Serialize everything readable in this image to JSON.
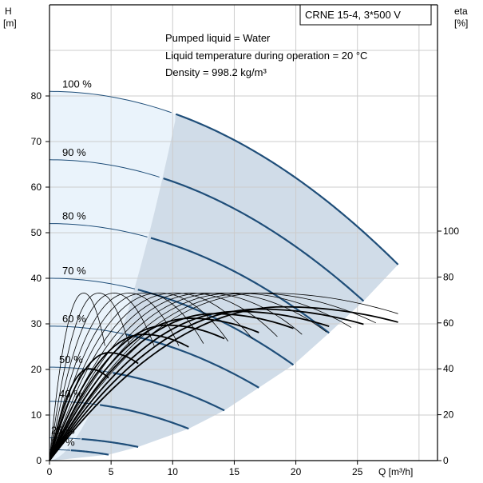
{
  "chart_data": {
    "type": "line",
    "title": "CRNE 15-4, 3*500 V",
    "info_lines": [
      "Pumped liquid = Water",
      "Liquid temperature during operation = 20 °C",
      "Density = 998.2 kg/m³"
    ],
    "x_axis": {
      "label": "Q [m³/h]",
      "ticks": [
        0,
        5,
        10,
        15,
        20,
        25
      ],
      "range": [
        0,
        31.5
      ]
    },
    "y_left": {
      "label_line1": "H",
      "label_line2": "[m]",
      "ticks": [
        0,
        10,
        20,
        30,
        40,
        50,
        60,
        70,
        80
      ],
      "range": [
        0,
        100
      ]
    },
    "y_right": {
      "label_line1": "eta",
      "label_line2": "[%]",
      "ticks": [
        0,
        20,
        40,
        60,
        80,
        100
      ],
      "range": [
        0,
        100
      ]
    },
    "grid": true,
    "colors": {
      "head_curve": "#1f4e79",
      "efficiency_curve": "#000000",
      "operating_area": "#d0dce8",
      "low_flow_area": "#eaf3fb",
      "grid": "#cccccc"
    },
    "head_curves": [
      {
        "speed_label": "100 %",
        "shut_off_head": 81,
        "q_max": 28.3,
        "h_end": 43
      },
      {
        "speed_label": "90 %",
        "shut_off_head": 66,
        "q_max": 25.5,
        "h_end": 35
      },
      {
        "speed_label": "80 %",
        "shut_off_head": 52,
        "q_max": 22.7,
        "h_end": 28
      },
      {
        "speed_label": "70 %",
        "shut_off_head": 40,
        "q_max": 19.8,
        "h_end": 21
      },
      {
        "speed_label": "60 %",
        "shut_off_head": 29.5,
        "q_max": 17.0,
        "h_end": 16
      },
      {
        "speed_label": "50 %",
        "shut_off_head": 20.5,
        "q_max": 14.2,
        "h_end": 11
      },
      {
        "speed_label": "40 %",
        "shut_off_head": 13,
        "q_max": 11.3,
        "h_end": 7
      },
      {
        "speed_label": "25 %",
        "shut_off_head": 5,
        "q_max": 7.2,
        "h_end": 3
      },
      {
        "speed_label": "17 %",
        "shut_off_head": 2.4,
        "q_max": 4.8,
        "h_end": 1.3
      }
    ],
    "efficiency_curves": [
      {
        "q_max": 28.3,
        "eta_peak": 67,
        "q_peak": 19
      },
      {
        "q_max": 25.5,
        "eta_peak": 66,
        "q_peak": 17
      },
      {
        "q_max": 22.7,
        "eta_peak": 65,
        "q_peak": 15.2
      },
      {
        "q_max": 19.8,
        "eta_peak": 64,
        "q_peak": 13.3
      },
      {
        "q_max": 17.0,
        "eta_peak": 62,
        "q_peak": 11.4
      },
      {
        "q_max": 14.2,
        "eta_peak": 59,
        "q_peak": 9.5
      },
      {
        "q_max": 11.3,
        "eta_peak": 55,
        "q_peak": 7.6
      },
      {
        "q_max": 7.2,
        "eta_peak": 47,
        "q_peak": 4.8
      },
      {
        "q_max": 4.8,
        "eta_peak": 40,
        "q_peak": 3.2
      }
    ],
    "thin_efficiency_curves": [
      {
        "q_end": 28.3,
        "eta_end": 64,
        "eta_peak": 73
      },
      {
        "q_end": 26.5,
        "eta_end": 60,
        "eta_peak": 73
      },
      {
        "q_end": 24.5,
        "eta_end": 58,
        "eta_peak": 73
      },
      {
        "q_end": 22.5,
        "eta_end": 56,
        "eta_peak": 73
      },
      {
        "q_end": 20.5,
        "eta_end": 55,
        "eta_peak": 73
      },
      {
        "q_end": 18.5,
        "eta_end": 54,
        "eta_peak": 73
      },
      {
        "q_end": 16.5,
        "eta_end": 53,
        "eta_peak": 73
      },
      {
        "q_end": 14.5,
        "eta_end": 52,
        "eta_peak": 73
      },
      {
        "q_end": 12.5,
        "eta_end": 51,
        "eta_peak": 73
      },
      {
        "q_end": 10.5,
        "eta_end": 50,
        "eta_peak": 73
      },
      {
        "q_end": 8.5,
        "eta_end": 50,
        "eta_peak": 73
      },
      {
        "q_end": 6.5,
        "eta_end": 50,
        "eta_peak": 73
      },
      {
        "q_end": 4.5,
        "eta_end": 50,
        "eta_peak": 73
      }
    ]
  }
}
